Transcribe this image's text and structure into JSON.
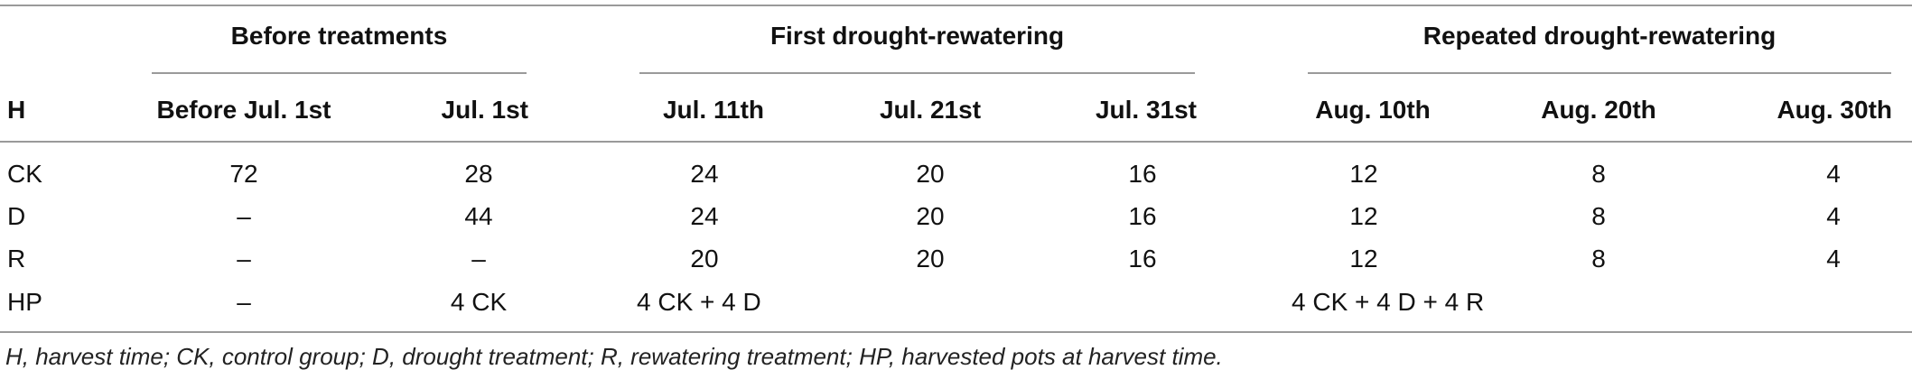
{
  "groups": {
    "before": "Before treatments",
    "first": "First drought-rewatering",
    "repeated": "Repeated drought-rewatering"
  },
  "columns": [
    "H",
    "Before Jul. 1st",
    "Jul. 1st",
    "Jul. 11th",
    "Jul. 21st",
    "Jul. 31st",
    "Aug. 10th",
    "Aug. 20th",
    "Aug. 30th"
  ],
  "rows": [
    [
      "CK",
      "72",
      "28",
      "24",
      "20",
      "16",
      "12",
      "8",
      "4"
    ],
    [
      "D",
      "–",
      "44",
      "24",
      "20",
      "16",
      "12",
      "8",
      "4"
    ],
    [
      "R",
      "–",
      "–",
      "20",
      "20",
      "16",
      "12",
      "8",
      "4"
    ]
  ],
  "hp_row": {
    "label": "HP",
    "before": "–",
    "jul1": "4 CK",
    "first": "4 CK + 4 D",
    "repeated": "4 CK + 4 D + 4 R"
  },
  "footnote": "H, harvest time; CK, control group; D, drought treatment; R, rewatering treatment; HP, harvested pots at harvest time."
}
